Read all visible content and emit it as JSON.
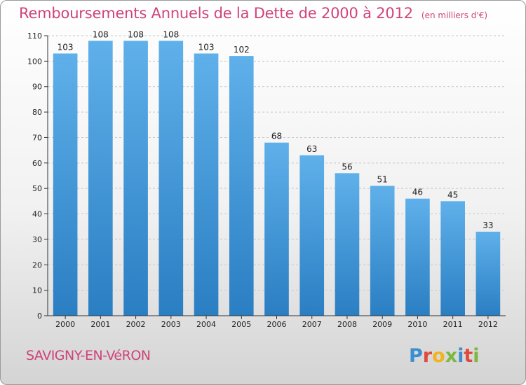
{
  "header": {
    "title": "Remboursements Annuels de la Dette de 2000 à 2012",
    "unit": "(en milliers d'€)"
  },
  "footer": {
    "commune": "SAVIGNY-EN-VéRON",
    "brand": "Proxiti"
  },
  "colors": {
    "title": "#d0437a",
    "bar_top": "#5fb0ea",
    "bar_bottom": "#2a7ec2",
    "logo_letters": [
      "#3a8fd0",
      "#e04a3c",
      "#f2b31e",
      "#7ab941",
      "#3a8fd0",
      "#e04a3c",
      "#7ab941"
    ]
  },
  "chart_data": {
    "type": "bar",
    "categories": [
      "2000",
      "2001",
      "2002",
      "2003",
      "2004",
      "2005",
      "2006",
      "2007",
      "2008",
      "2009",
      "2010",
      "2011",
      "2012"
    ],
    "values": [
      103,
      108,
      108,
      108,
      103,
      102,
      68,
      63,
      56,
      51,
      46,
      45,
      33
    ],
    "ylim": [
      0,
      110
    ],
    "yticks": [
      0,
      10,
      20,
      30,
      40,
      50,
      60,
      70,
      80,
      90,
      100,
      110
    ],
    "grid": true,
    "legend": "none"
  }
}
